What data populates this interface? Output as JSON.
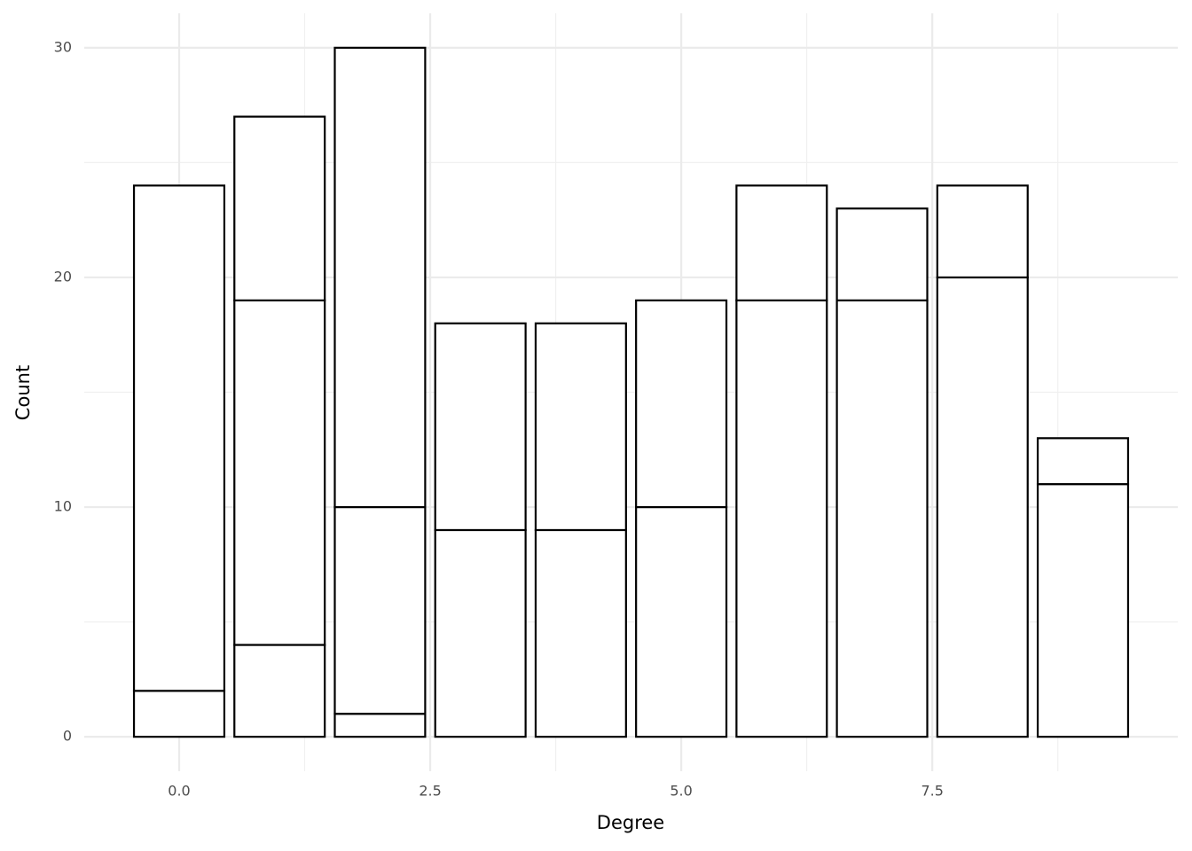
{
  "chart_data": {
    "type": "stacked_bar",
    "x_label": "Degree",
    "y_label": "Count",
    "x": [
      0,
      1,
      2,
      3,
      4,
      5,
      6,
      7,
      8,
      9
    ],
    "series": [
      {
        "values": [
          2,
          4,
          1,
          9,
          9,
          10,
          19,
          19,
          20,
          11
        ]
      },
      {
        "values": [
          22,
          15,
          9,
          9,
          9,
          9,
          5,
          4,
          4,
          2
        ]
      },
      {
        "values": [
          null,
          8,
          20,
          null,
          null,
          null,
          null,
          null,
          null,
          null
        ]
      }
    ],
    "fill": "#ffffff",
    "outline": "#000000",
    "xlim": [
      -0.945,
      9.945
    ],
    "ylim": [
      -1.5,
      31.5
    ],
    "xticks": [
      {
        "value": 0,
        "label": "0.0"
      },
      2.5,
      {
        "value": 5,
        "label": "5.0"
      },
      7.5
    ],
    "yticks": [
      0,
      10,
      20,
      30
    ],
    "x_minor_ticks": [
      1.25,
      3.75,
      6.25,
      8.75
    ],
    "y_minor_ticks": [
      5,
      15,
      25
    ],
    "grid": true
  }
}
